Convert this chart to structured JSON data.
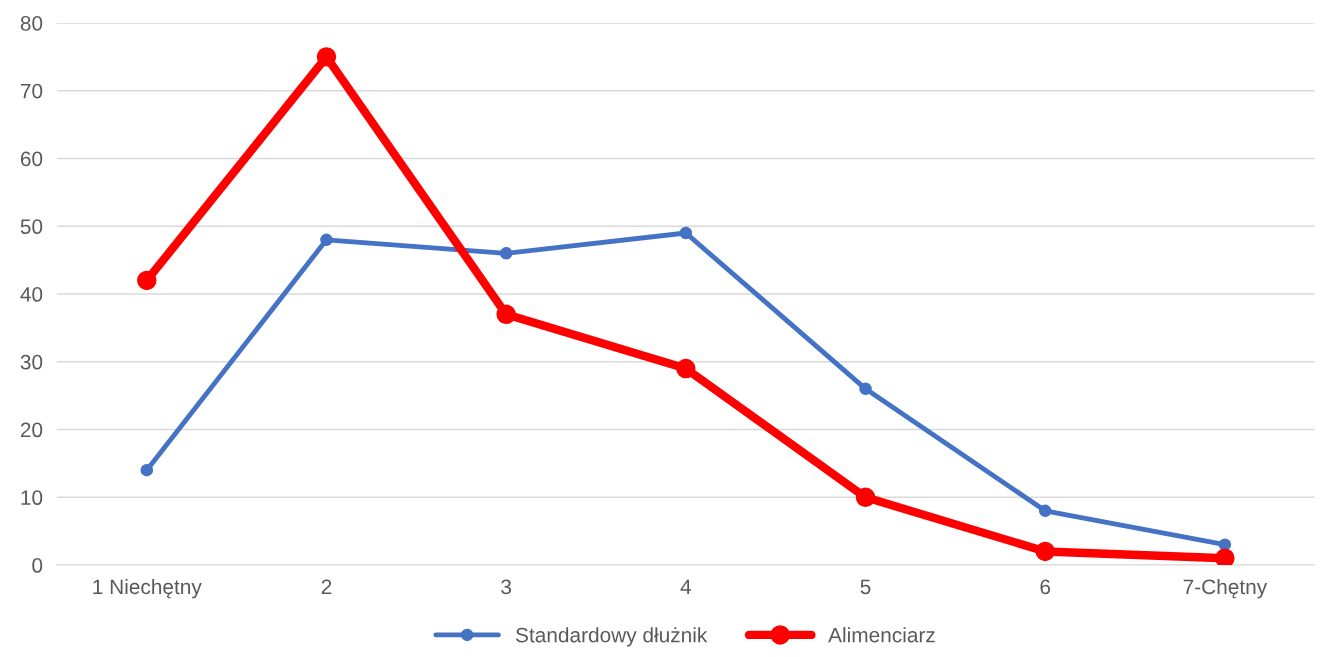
{
  "chart_data": {
    "type": "line",
    "categories": [
      "1 Niechętny",
      "2",
      "3",
      "4",
      "5",
      "6",
      "7-Chętny"
    ],
    "series": [
      {
        "name": "Standardowy dłużnik",
        "color": "#4472c4",
        "values": [
          14,
          48,
          46,
          49,
          26,
          8,
          3
        ]
      },
      {
        "name": "Alimenciarz",
        "color": "#ff0000",
        "values": [
          42,
          75,
          37,
          29,
          10,
          2,
          1
        ]
      }
    ],
    "ylim": [
      0,
      80
    ],
    "yticks": [
      0,
      10,
      20,
      30,
      40,
      50,
      60,
      70,
      80
    ],
    "grid": "y",
    "legend": "bottom",
    "marker": "circle",
    "line_style": "solid"
  }
}
